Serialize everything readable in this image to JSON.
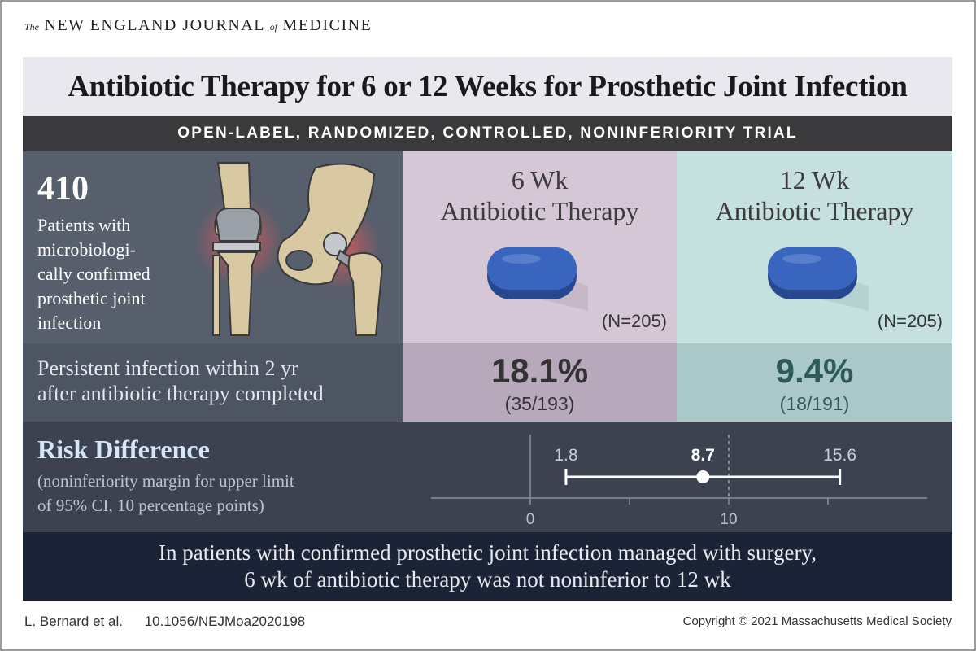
{
  "masthead": {
    "the": "The",
    "main": "NEW ENGLAND JOURNAL",
    "of": "of",
    "tail": "MEDICINE"
  },
  "title": "Antibiotic Therapy for 6 or 12 Weeks for Prosthetic Joint Infection",
  "subtitle": "OPEN-LABEL, RANDOMIZED, CONTROLLED, NONINFERIORITY TRIAL",
  "population": {
    "count": "410",
    "description_lines": [
      "Patients with",
      "microbiologi-",
      "cally confirmed",
      "prosthetic joint",
      "infection"
    ]
  },
  "arms": [
    {
      "title_line1": "6 Wk",
      "title_line2": "Antibiotic Therapy",
      "n": "(N=205)",
      "rate": "18.1%",
      "fraction": "(35/193)"
    },
    {
      "title_line1": "12 Wk",
      "title_line2": "Antibiotic Therapy",
      "n": "(N=205)",
      "rate": "9.4%",
      "fraction": "(18/191)"
    }
  ],
  "outcome": {
    "line1": "Persistent infection within 2 yr",
    "line2": "after antibiotic therapy completed"
  },
  "risk_difference": {
    "title": "Risk Difference",
    "sub_line1": "(noninferiority margin for upper limit",
    "sub_line2": "of 95% CI, 10 percentage points)",
    "point": 8.7,
    "lower": 1.8,
    "upper": 15.6,
    "point_label": "8.7",
    "lower_label": "1.8",
    "upper_label": "15.6",
    "axis_min": -5,
    "axis_max": 20,
    "ticks": [
      0,
      5,
      10,
      15
    ],
    "tick_labels": [
      "0",
      "10"
    ],
    "margin": 10
  },
  "conclusion": {
    "line1": "In patients with confirmed prosthetic joint infection managed with surgery,",
    "line2": "6 wk of antibiotic therapy was not noninferior to 12 wk"
  },
  "footer": {
    "authors": "L. Bernard et al.",
    "doi": "10.1056/NEJMoa2020198",
    "copyright": "Copyright © 2021 Massachusetts Medical Society"
  },
  "colors": {
    "accent_dark": "#1b2437",
    "pill": "#2f56a8",
    "arm6_bg": "#d6c7d7",
    "arm12_bg": "#c6e0df"
  }
}
